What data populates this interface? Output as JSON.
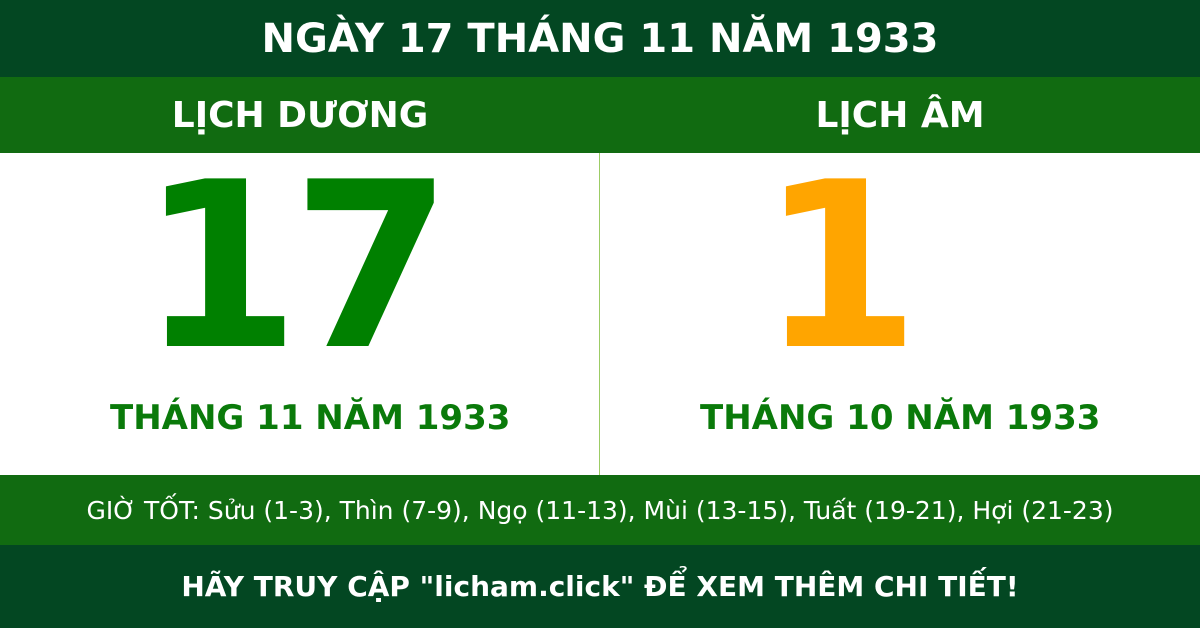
{
  "header": {
    "title": "NGÀY 17 THÁNG 11 NĂM 1933"
  },
  "solar": {
    "label": "LỊCH DƯƠNG",
    "day": "17",
    "month_year": "THÁNG 11 NĂM 1933"
  },
  "lunar": {
    "label": "LỊCH ÂM",
    "day": "1",
    "month_year": "THÁNG 10 NĂM 1933"
  },
  "good_hours": "GIỜ TỐT: Sửu (1-3), Thìn (7-9), Ngọ (11-13), Mùi (13-15), Tuất (19-21), Hợi (21-23)",
  "footer": "HÃY TRUY CẬP \"licham.click\" ĐỂ XEM THÊM CHI TIẾT!",
  "colors": {
    "dark_green": "#034722",
    "green": "#116b11",
    "solar_number": "#008000",
    "lunar_number": "#ffa500"
  }
}
